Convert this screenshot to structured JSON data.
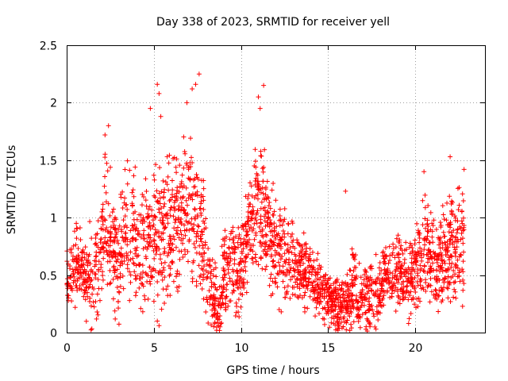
{
  "chart_data": {
    "type": "scatter",
    "title": "Day 338 of 2023, SRMTID for receiver yell",
    "xlabel": "GPS time / hours",
    "ylabel": "SRMTID / TECUs",
    "xlim": [
      0,
      24
    ],
    "ylim": [
      0,
      2.5
    ],
    "x_ticks": [
      0,
      5,
      10,
      15,
      20
    ],
    "x_tick_labels": [
      "0",
      "5",
      "10",
      "15",
      "20"
    ],
    "y_ticks": [
      0,
      0.5,
      1,
      1.5,
      2,
      2.5
    ],
    "y_tick_labels": [
      "0",
      "0.5",
      "1",
      "1.5",
      "2",
      "2.5"
    ],
    "grid": true,
    "marker": "plus",
    "series_color": "#ff0000",
    "data_extent_hours": [
      0,
      22.8
    ],
    "trend_points": [
      [
        0.0,
        0.45
      ],
      [
        0.5,
        0.55
      ],
      [
        0.8,
        0.6
      ],
      [
        1.2,
        0.4
      ],
      [
        1.6,
        0.45
      ],
      [
        1.9,
        0.7
      ],
      [
        2.2,
        1.0
      ],
      [
        2.6,
        0.8
      ],
      [
        3.0,
        0.6
      ],
      [
        3.3,
        0.9
      ],
      [
        3.8,
        0.85
      ],
      [
        4.2,
        0.8
      ],
      [
        4.6,
        0.75
      ],
      [
        5.0,
        0.9
      ],
      [
        5.4,
        0.85
      ],
      [
        5.8,
        0.9
      ],
      [
        6.3,
        0.9
      ],
      [
        6.8,
        1.0
      ],
      [
        7.2,
        1.1
      ],
      [
        7.6,
        0.9
      ],
      [
        8.0,
        0.55
      ],
      [
        8.4,
        0.35
      ],
      [
        8.7,
        0.15
      ],
      [
        9.0,
        0.5
      ],
      [
        9.5,
        0.6
      ],
      [
        10.0,
        0.55
      ],
      [
        10.4,
        0.9
      ],
      [
        10.8,
        1.1
      ],
      [
        11.2,
        1.05
      ],
      [
        11.6,
        0.9
      ],
      [
        12.0,
        0.75
      ],
      [
        12.5,
        0.65
      ],
      [
        13.0,
        0.6
      ],
      [
        13.5,
        0.55
      ],
      [
        14.0,
        0.5
      ],
      [
        14.5,
        0.4
      ],
      [
        15.0,
        0.3
      ],
      [
        15.5,
        0.25
      ],
      [
        16.0,
        0.2
      ],
      [
        16.4,
        0.4
      ],
      [
        16.8,
        0.3
      ],
      [
        17.2,
        0.3
      ],
      [
        17.7,
        0.35
      ],
      [
        18.2,
        0.5
      ],
      [
        18.7,
        0.55
      ],
      [
        19.2,
        0.55
      ],
      [
        19.7,
        0.45
      ],
      [
        20.2,
        0.65
      ],
      [
        20.7,
        0.75
      ],
      [
        21.2,
        0.6
      ],
      [
        21.7,
        0.65
      ],
      [
        22.2,
        0.75
      ],
      [
        22.8,
        0.75
      ]
    ],
    "spread": [
      [
        0,
        0.25
      ],
      [
        2,
        0.45
      ],
      [
        5,
        0.5
      ],
      [
        7.5,
        0.55
      ],
      [
        8.5,
        0.3
      ],
      [
        10,
        0.35
      ],
      [
        11,
        0.5
      ],
      [
        13,
        0.3
      ],
      [
        15,
        0.2
      ],
      [
        16.5,
        0.3
      ],
      [
        18,
        0.25
      ],
      [
        20,
        0.35
      ],
      [
        22.8,
        0.4
      ]
    ],
    "peaks": [
      [
        2.4,
        1.8
      ],
      [
        2.2,
        1.72
      ],
      [
        4.8,
        1.95
      ],
      [
        5.2,
        2.16
      ],
      [
        5.3,
        2.08
      ],
      [
        5.4,
        1.88
      ],
      [
        6.9,
        2.0
      ],
      [
        7.2,
        2.12
      ],
      [
        7.4,
        2.16
      ],
      [
        7.6,
        2.25
      ],
      [
        11.1,
        1.95
      ],
      [
        11.3,
        2.15
      ],
      [
        11.0,
        2.05
      ],
      [
        16.0,
        1.23
      ],
      [
        20.5,
        1.4
      ],
      [
        22.0,
        1.53
      ],
      [
        22.8,
        1.42
      ]
    ],
    "lows": [
      [
        5.2,
        0.1
      ],
      [
        5.3,
        0.06
      ],
      [
        8.6,
        0.02
      ],
      [
        8.8,
        0.05
      ],
      [
        8.5,
        0.08
      ],
      [
        14.8,
        0.07
      ]
    ],
    "point_count": 2600
  }
}
